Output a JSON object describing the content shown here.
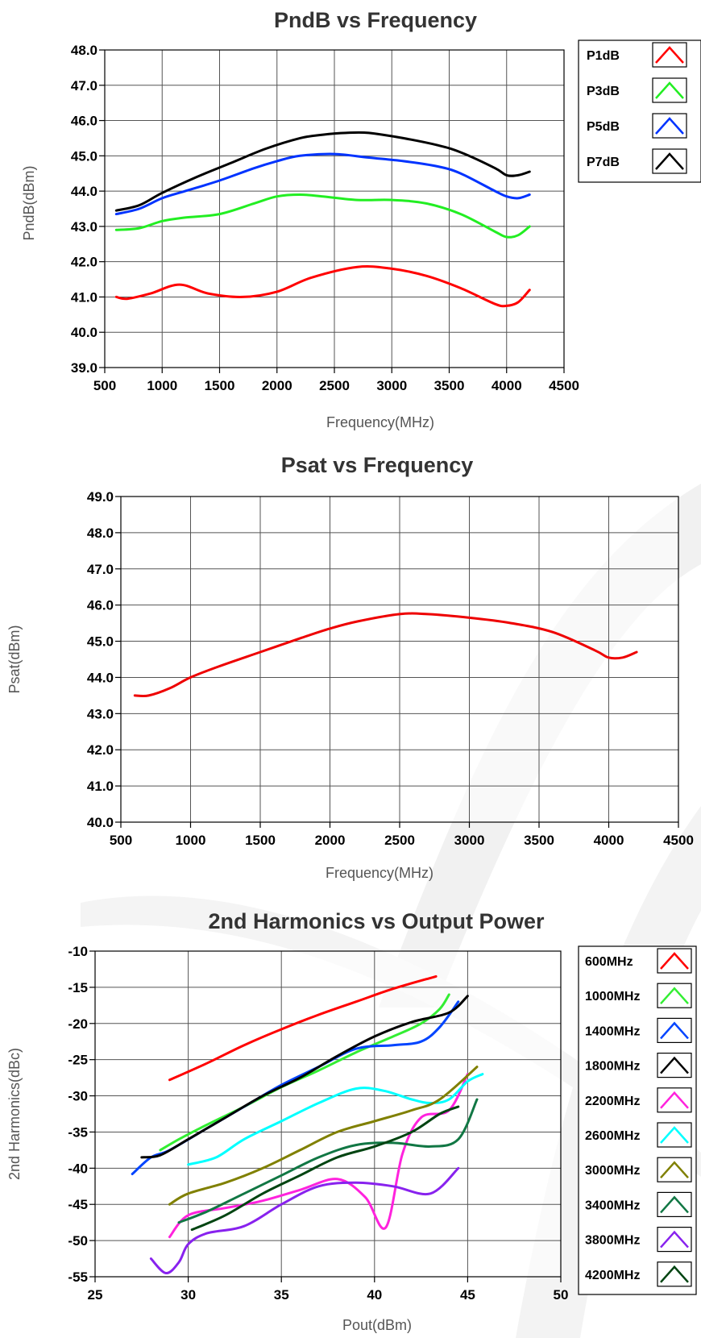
{
  "chart_data": [
    {
      "type": "line",
      "title": "PndB vs Frequency",
      "xlabel": "Frequency(MHz)",
      "ylabel": "PndB(dBm)",
      "xlim": [
        500,
        4500
      ],
      "ylim": [
        39.0,
        48.0
      ],
      "xticks": [
        500,
        1000,
        1500,
        2000,
        2500,
        3000,
        3500,
        4000,
        4500
      ],
      "yticks": [
        "39.0",
        "40.0",
        "41.0",
        "42.0",
        "43.0",
        "44.0",
        "45.0",
        "46.0",
        "47.0",
        "48.0"
      ],
      "grid": true,
      "legend": "right",
      "series": [
        {
          "name": "P1dB",
          "color": "#ff0000",
          "x": [
            600,
            700,
            900,
            1150,
            1400,
            1700,
            2000,
            2300,
            2700,
            3000,
            3300,
            3600,
            3900,
            4000,
            4100,
            4200
          ],
          "y": [
            41.0,
            40.95,
            41.1,
            41.35,
            41.1,
            41.0,
            41.15,
            41.55,
            41.85,
            41.8,
            41.6,
            41.25,
            40.8,
            40.75,
            40.85,
            41.2
          ]
        },
        {
          "name": "P3dB",
          "color": "#22ee22",
          "x": [
            600,
            800,
            1000,
            1200,
            1500,
            1800,
            2000,
            2200,
            2400,
            2700,
            3000,
            3300,
            3600,
            3900,
            4000,
            4100,
            4200
          ],
          "y": [
            42.9,
            42.95,
            43.15,
            43.25,
            43.35,
            43.65,
            43.85,
            43.9,
            43.85,
            43.75,
            43.75,
            43.65,
            43.35,
            42.85,
            42.7,
            42.75,
            43.0
          ]
        },
        {
          "name": "P5dB",
          "color": "#0033ff",
          "x": [
            600,
            800,
            1000,
            1200,
            1500,
            1800,
            2000,
            2200,
            2500,
            2800,
            3100,
            3400,
            3600,
            3900,
            4000,
            4100,
            4200
          ],
          "y": [
            43.35,
            43.5,
            43.8,
            44.0,
            44.3,
            44.65,
            44.85,
            45.0,
            45.05,
            44.95,
            44.85,
            44.7,
            44.5,
            44.0,
            43.85,
            43.8,
            43.9
          ]
        },
        {
          "name": "P7dB",
          "color": "#000000",
          "x": [
            600,
            800,
            1000,
            1300,
            1600,
            1900,
            2200,
            2400,
            2600,
            2800,
            3100,
            3400,
            3600,
            3900,
            4000,
            4100,
            4200
          ],
          "y": [
            43.45,
            43.6,
            43.95,
            44.4,
            44.8,
            45.2,
            45.5,
            45.6,
            45.65,
            45.65,
            45.5,
            45.3,
            45.1,
            44.65,
            44.45,
            44.45,
            44.55
          ]
        }
      ]
    },
    {
      "type": "line",
      "title": "Psat vs Frequency",
      "xlabel": "Frequency(MHz)",
      "ylabel": "Psat(dBm)",
      "xlim": [
        500,
        4500
      ],
      "ylim": [
        40.0,
        49.0
      ],
      "xticks": [
        500,
        1000,
        1500,
        2000,
        2500,
        3000,
        3500,
        4000,
        4500
      ],
      "yticks": [
        "40.0",
        "41.0",
        "42.0",
        "43.0",
        "44.0",
        "45.0",
        "46.0",
        "47.0",
        "48.0",
        "49.0"
      ],
      "grid": true,
      "series": [
        {
          "name": "",
          "color": "#ee0000",
          "x": [
            600,
            700,
            850,
            1000,
            1200,
            1500,
            1800,
            2000,
            2200,
            2500,
            2700,
            3000,
            3300,
            3600,
            3900,
            4000,
            4100,
            4200
          ],
          "y": [
            43.5,
            43.5,
            43.7,
            44.0,
            44.3,
            44.7,
            45.1,
            45.35,
            45.55,
            45.75,
            45.75,
            45.65,
            45.5,
            45.25,
            44.75,
            44.55,
            44.55,
            44.7
          ]
        }
      ]
    },
    {
      "type": "line",
      "title": "2nd Harmonics vs Output Power",
      "xlabel": "Pout(dBm)",
      "ylabel": "2nd Harmonics(dBc)",
      "xlim": [
        25,
        50
      ],
      "ylim": [
        -55,
        -10
      ],
      "xticks": [
        25,
        30,
        35,
        40,
        45,
        50
      ],
      "yticks": [
        "-55",
        "-50",
        "-45",
        "-40",
        "-35",
        "-30",
        "-25",
        "-20",
        "-15",
        "-10"
      ],
      "grid": true,
      "legend": "right",
      "series": [
        {
          "name": "600MHz",
          "color": "#ff0000",
          "x": [
            29,
            31,
            33,
            35,
            37,
            39,
            41,
            43.3
          ],
          "y": [
            -27.8,
            -25.5,
            -23.0,
            -20.8,
            -18.8,
            -17.0,
            -15.2,
            -13.5
          ]
        },
        {
          "name": "1000MHz",
          "color": "#33ee33",
          "x": [
            28.5,
            29.5,
            31,
            33,
            35,
            37,
            39,
            41,
            42.5,
            43.5,
            44
          ],
          "y": [
            -37.5,
            -36.0,
            -34.0,
            -31.5,
            -28.8,
            -26.5,
            -24.0,
            -21.8,
            -20.0,
            -18.0,
            -16.0
          ]
        },
        {
          "name": "1400MHz",
          "color": "#0044ff",
          "x": [
            27,
            28,
            29,
            31,
            33,
            35,
            37,
            39,
            41,
            42.5,
            43.5,
            44.5
          ],
          "y": [
            -40.8,
            -38.5,
            -37.5,
            -34.5,
            -31.5,
            -28.5,
            -26.0,
            -23.5,
            -23.0,
            -22.5,
            -20.5,
            -17.0
          ]
        },
        {
          "name": "1800MHz",
          "color": "#000000",
          "x": [
            27.5,
            28.5,
            30,
            32,
            34,
            36,
            38,
            40,
            42,
            44,
            45
          ],
          "y": [
            -38.5,
            -38.2,
            -36.0,
            -33.0,
            -30.0,
            -27.5,
            -24.5,
            -21.8,
            -19.8,
            -18.5,
            -16.2
          ]
        },
        {
          "name": "2200MHz",
          "color": "#ff22dd",
          "x": [
            29,
            30,
            32,
            34,
            36,
            38,
            39.5,
            40.6,
            41.5,
            42.5,
            44,
            45
          ],
          "y": [
            -49.5,
            -46.5,
            -45.5,
            -44.5,
            -43.0,
            -41.5,
            -44.0,
            -48.2,
            -38.0,
            -33.0,
            -32.0,
            -27.0
          ]
        },
        {
          "name": "2600MHz",
          "color": "#00ffff",
          "x": [
            30,
            31.5,
            33,
            35,
            37,
            39,
            40.5,
            42,
            43,
            44,
            45,
            45.8
          ],
          "y": [
            -39.5,
            -38.5,
            -36.0,
            -33.5,
            -31.0,
            -29.0,
            -29.3,
            -30.5,
            -31.0,
            -30.5,
            -28.0,
            -27.0
          ]
        },
        {
          "name": "3000MHz",
          "color": "#808000",
          "x": [
            29,
            30,
            32,
            34,
            36,
            38,
            40,
            42,
            43.5,
            45.5
          ],
          "y": [
            -45.0,
            -43.5,
            -42.0,
            -40.0,
            -37.5,
            -35.0,
            -33.5,
            -32.0,
            -30.5,
            -26.0
          ]
        },
        {
          "name": "3400MHz",
          "color": "#117744",
          "x": [
            29.5,
            31,
            33,
            35,
            37,
            39,
            41,
            43,
            44.5,
            45.5
          ],
          "y": [
            -47.5,
            -46.0,
            -43.5,
            -41.0,
            -38.5,
            -36.8,
            -36.5,
            -37.0,
            -36.0,
            -30.5
          ]
        },
        {
          "name": "3800MHz",
          "color": "#8822ee",
          "x": [
            28,
            28.8,
            29.5,
            30,
            31,
            33,
            35,
            37,
            39,
            41,
            43,
            44.5
          ],
          "y": [
            -52.5,
            -54.5,
            -53.0,
            -50.5,
            -49.0,
            -48.0,
            -45.0,
            -42.5,
            -42.0,
            -42.5,
            -43.5,
            -40.0
          ]
        },
        {
          "name": "4200MHz",
          "color": "#004411",
          "x": [
            30.2,
            32,
            34,
            36,
            38,
            40,
            42,
            43.5,
            44.5
          ],
          "y": [
            -48.5,
            -46.5,
            -43.5,
            -41.0,
            -38.5,
            -37.0,
            -35.0,
            -32.5,
            -31.5
          ]
        }
      ]
    }
  ]
}
